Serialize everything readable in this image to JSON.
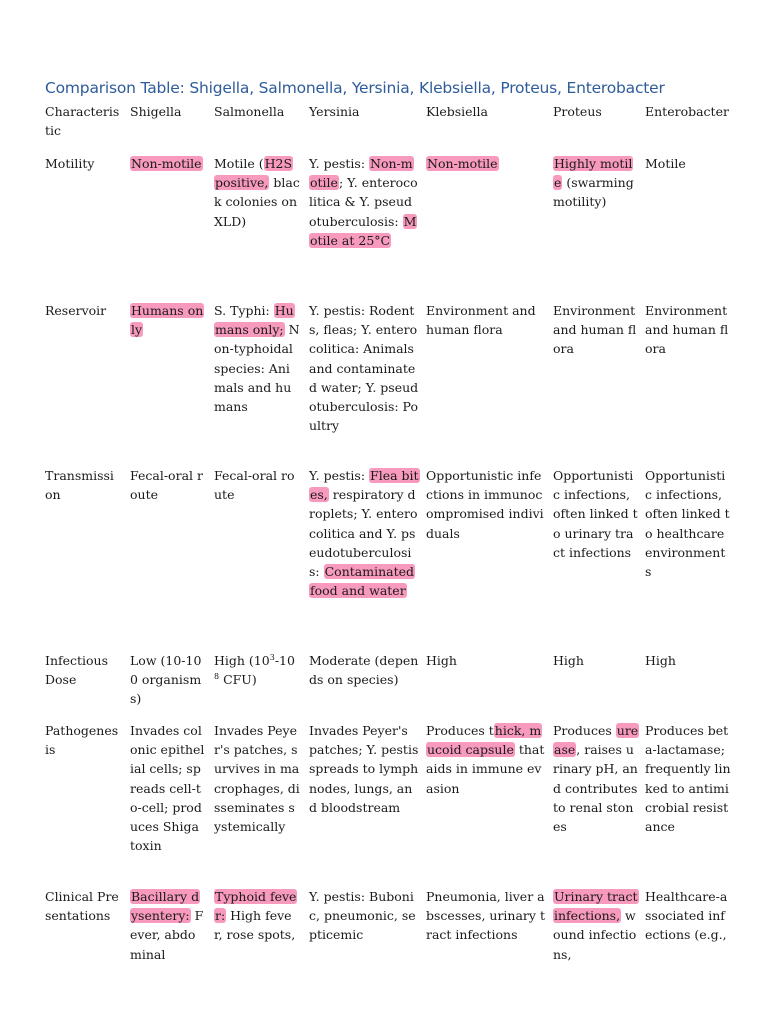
{
  "title": "Comparison Table: Shigella, Salmonella, Yersinia, Klebsiella, Proteus, Enterobacter",
  "header": {
    "characteristic": "Characteristic",
    "shigella": "Shigella",
    "salmonella": "Salmonella",
    "yersinia": "Yersinia",
    "klebsiella": "Klebsiella",
    "proteus": "Proteus",
    "enterobacter": "Enterobacter"
  },
  "motility": {
    "label": "Motility",
    "shigella": "Non-motile",
    "salmonella_a": "Motile (",
    "salmonella_hl": "H2S positive,",
    "salmonella_b": " black colonies on XLD)",
    "yersinia_a": "Y. pestis: ",
    "yersinia_hl1": "Non-motile",
    "yersinia_b": "; Y. enterocolitica & Y. pseudotuberculosis: ",
    "yersinia_hl2": "Motile at 25°C",
    "klebsiella": "Non-motile",
    "proteus_hl": "Highly motile",
    "proteus_b": " (swarming motility)",
    "enterobacter": "Motile"
  },
  "reservoir": {
    "label": "Reservoir",
    "shigella": "Humans only",
    "salmonella_a": "S. Typhi: ",
    "salmonella_hl": "Humans only;",
    "salmonella_b": " Non-typhoidal species: Animals and humans",
    "yersinia": "Y. pestis: Rodents, fleas; Y. enterocolitica: Animals and contaminated water; Y. pseudotuberculosis: Poultry",
    "klebsiella": "Environment and human flora",
    "proteus": "Environment and human flora",
    "enterobacter": "Environment and human flora"
  },
  "transmission": {
    "label": "Transmission",
    "shigella": "Fecal-oral route",
    "salmonella": "Fecal-oral route",
    "yersinia_a": "Y. pestis: ",
    "yersinia_hl1": "Flea bites,",
    "yersinia_b": " respiratory droplets; Y. enterocolitica and Y. pseudotuberculosis: ",
    "yersinia_hl2": "Contaminated food and water",
    "klebsiella": "Opportunistic infections in immunocompromised individuals",
    "proteus": "Opportunistic infections, often linked to urinary tract infections",
    "enterobacter": "Opportunistic infections, often linked to healthcare environments"
  },
  "dose": {
    "label": "Infectious Dose",
    "shigella": "Low (10-100 organisms)",
    "salmonella_a": "High (10",
    "salmonella_sup1": "3",
    "salmonella_b": "-10",
    "salmonella_sup2": "8",
    "salmonella_c": " CFU)",
    "yersinia": "Moderate (depends on species)",
    "klebsiella": "High",
    "proteus": "High",
    "enterobacter": "High"
  },
  "pathogenesis": {
    "label": "Pathogenesis",
    "shigella": "Invades colonic epithelial cells; spreads cell-to-cell; produces Shiga toxin",
    "salmonella": "Invades Peyer's patches, survives in macrophages, disseminates systemically",
    "yersinia": "Invades Peyer's patches; Y. pestis spreads to lymph nodes, lungs, and bloodstream",
    "klebsiella_a": "Produces t",
    "klebsiella_hl": "hick, mucoid capsule",
    "klebsiella_b": " that aids in immune evasion",
    "proteus_a": "Produces ",
    "proteus_hl": "urease",
    "proteus_b": ", raises urinary pH, and contributes to renal stones",
    "enterobacter": "Produces beta-lactamase; frequently linked to antimicrobial resistance"
  },
  "clinical": {
    "label": "Clinical Presentations",
    "shigella_hl": "Bacillary dysentery:",
    "shigella_b": " Fever, abdominal",
    "salmonella_hl": "Typhoid fever:",
    "salmonella_b": " High fever, rose spots,",
    "yersinia": "Y. pestis: Bubonic, pneumonic, septicemic",
    "klebsiella": "Pneumonia, liver abscesses, urinary tract infections",
    "proteus_hl": "Urinary tract infections,",
    "proteus_b": " wound infections,",
    "enterobacter": "Healthcare-associated infections (e.g.,"
  }
}
